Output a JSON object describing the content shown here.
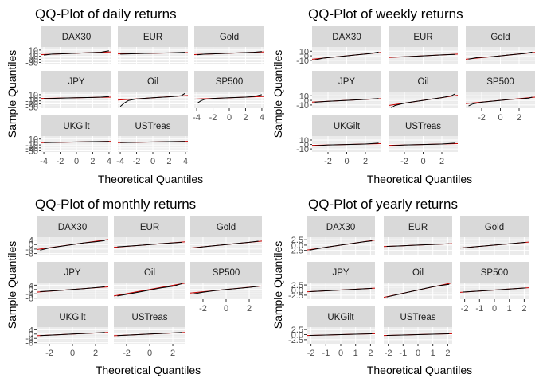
{
  "colors": {
    "strip": "#d9d9d9",
    "panel": "#ebebeb",
    "reference": "#cc0000",
    "sample": "#000000"
  },
  "chart_data": [
    {
      "type": "scatter",
      "title": "QQ-Plot of daily returns",
      "xlabel": "Theoretical Quantiles",
      "ylabel": "Sample Quantiles",
      "facets": [
        "DAX30",
        "EUR",
        "Gold",
        "JPY",
        "Oil",
        "SP500",
        "UKGilt",
        "USTreas"
      ],
      "xlim": [
        -4.3,
        4.3
      ],
      "ylim": [
        -34,
        20
      ],
      "xticks": [
        -4,
        -2,
        0,
        2,
        4
      ],
      "xtick_labels": [
        "-4",
        "-2",
        "0",
        "2",
        "4"
      ],
      "yticks": [
        10,
        0,
        -10,
        -20,
        -30
      ],
      "ytick_labels": [
        "10",
        "0",
        "-10",
        "-20",
        "-30"
      ],
      "series": [
        {
          "facet": "DAX30",
          "x": [
            -4,
            -3,
            -2,
            0,
            2,
            3,
            4
          ],
          "y": [
            -6,
            -3,
            -2,
            0,
            2,
            3,
            8
          ]
        },
        {
          "facet": "EUR",
          "x": [
            -4,
            -3,
            -2,
            0,
            2,
            3,
            4
          ],
          "y": [
            -3,
            -2,
            -1,
            0,
            1,
            2,
            3
          ]
        },
        {
          "facet": "Gold",
          "x": [
            -4,
            -3,
            -2,
            0,
            2,
            3,
            4
          ],
          "y": [
            -5,
            -3,
            -2,
            0,
            2,
            3,
            5
          ]
        },
        {
          "facet": "JPY",
          "x": [
            -4,
            -3,
            -2,
            0,
            2,
            3,
            4
          ],
          "y": [
            -3,
            -2,
            -1,
            0,
            1,
            2,
            4
          ]
        },
        {
          "facet": "Oil",
          "x": [
            -4,
            -3.5,
            -3,
            -2,
            0,
            2,
            3,
            3.5,
            4
          ],
          "y": [
            -28,
            -17,
            -9,
            -4,
            0,
            3,
            5,
            7,
            15
          ]
        },
        {
          "facet": "SP500",
          "x": [
            -4,
            -3.5,
            -3,
            -2,
            0,
            2,
            3,
            4
          ],
          "y": [
            -19,
            -10,
            -5,
            -2,
            0,
            2,
            4,
            10
          ]
        },
        {
          "facet": "UKGilt",
          "x": [
            -4,
            -3,
            -2,
            0,
            2,
            3,
            4
          ],
          "y": [
            -2,
            -1.5,
            -1,
            0,
            1,
            1.5,
            2
          ]
        },
        {
          "facet": "USTreas",
          "x": [
            -4,
            -3,
            -2,
            0,
            2,
            3,
            4
          ],
          "y": [
            -2,
            -1.5,
            -1,
            0,
            1,
            1.5,
            2
          ]
        }
      ]
    },
    {
      "type": "scatter",
      "title": "QQ-Plot of weekly returns",
      "xlabel": "Theoretical Quantiles",
      "ylabel": "Sample Quantiles",
      "facets": [
        "DAX30",
        "EUR",
        "Gold",
        "JPY",
        "Oil",
        "SP500",
        "UKGilt",
        "USTreas"
      ],
      "xlim": [
        -3.7,
        3.7
      ],
      "ylim": [
        -17,
        19
      ],
      "xticks": [
        -2,
        0,
        2
      ],
      "xtick_labels": [
        "-2",
        "0",
        "2"
      ],
      "yticks": [
        10,
        0,
        -10
      ],
      "ytick_labels": [
        "10",
        "0",
        "-10"
      ],
      "series": [
        {
          "facet": "DAX30",
          "x": [
            -3.4,
            -2.5,
            -1,
            0,
            1,
            2.5,
            3.4
          ],
          "y": [
            -9,
            -5,
            -2,
            0,
            2,
            5,
            8
          ]
        },
        {
          "facet": "EUR",
          "x": [
            -3.4,
            -2,
            0,
            2,
            3.4
          ],
          "y": [
            -3,
            -2,
            0,
            2,
            3
          ]
        },
        {
          "facet": "Gold",
          "x": [
            -3.4,
            -2.5,
            -1,
            0,
            1,
            2.5,
            3.4
          ],
          "y": [
            -7,
            -4,
            -2,
            0,
            2,
            5,
            8
          ]
        },
        {
          "facet": "JPY",
          "x": [
            -3.4,
            -2,
            0,
            2,
            3.4
          ],
          "y": [
            -4,
            -2,
            0,
            2,
            4
          ]
        },
        {
          "facet": "Oil",
          "x": [
            -3.4,
            -3,
            -2,
            -1,
            0,
            1,
            2,
            3,
            3.4
          ],
          "y": [
            -16,
            -11,
            -6,
            -3,
            0,
            3,
            6,
            10,
            14
          ]
        },
        {
          "facet": "SP500",
          "x": [
            -3.4,
            -3,
            -2,
            -1,
            0,
            1,
            2,
            3,
            3.4
          ],
          "y": [
            -12,
            -8,
            -4,
            -2,
            0,
            2,
            3,
            5,
            7
          ]
        },
        {
          "facet": "UKGilt",
          "x": [
            -3.4,
            -2,
            0,
            2,
            3.4
          ],
          "y": [
            -3,
            -1,
            0,
            1,
            3
          ]
        },
        {
          "facet": "USTreas",
          "x": [
            -3.4,
            -2,
            0,
            2,
            3.4
          ],
          "y": [
            -3,
            -1,
            0,
            1,
            3
          ]
        }
      ]
    },
    {
      "type": "scatter",
      "title": "QQ-Plot of monthly returns",
      "xlabel": "Theoretical Quantiles",
      "ylabel": "Sample Quantiles",
      "facets": [
        "DAX30",
        "EUR",
        "Gold",
        "JPY",
        "Oil",
        "SP500",
        "UKGilt",
        "USTreas"
      ],
      "xlim": [
        -3.1,
        3.1
      ],
      "ylim": [
        -9,
        6.5
      ],
      "xticks": [
        -2,
        0,
        2
      ],
      "xtick_labels": [
        "-2",
        "0",
        "2"
      ],
      "yticks": [
        4,
        0,
        -4,
        -8
      ],
      "ytick_labels": [
        "4",
        "0",
        "-4",
        "-8"
      ],
      "series": [
        {
          "facet": "DAX30",
          "x": [
            -2.8,
            -2,
            -1,
            0,
            1,
            2,
            2.8
          ],
          "y": [
            -5,
            -3,
            -1.5,
            0,
            1.5,
            2.5,
            3.5
          ]
        },
        {
          "facet": "EUR",
          "x": [
            -2.8,
            -1,
            0,
            1,
            2.8
          ],
          "y": [
            -2,
            -0.8,
            0,
            0.8,
            2
          ]
        },
        {
          "facet": "Gold",
          "x": [
            -2.8,
            -2,
            -1,
            0,
            1,
            2,
            2.8
          ],
          "y": [
            -3,
            -2,
            -1,
            0,
            1,
            2,
            3
          ]
        },
        {
          "facet": "JPY",
          "x": [
            -2.8,
            -1,
            0,
            1,
            2.8
          ],
          "y": [
            -2,
            -0.8,
            0,
            0.8,
            2.5
          ]
        },
        {
          "facet": "Oil",
          "x": [
            -2.8,
            -2,
            -1,
            0,
            1,
            2,
            2.5,
            2.8
          ],
          "y": [
            -6,
            -4.5,
            -2.5,
            -0.5,
            1.5,
            3,
            4.5,
            5.5
          ]
        },
        {
          "facet": "SP500",
          "x": [
            -2.8,
            -2,
            -1,
            0,
            1,
            2,
            2.8
          ],
          "y": [
            -4,
            -2.5,
            -1,
            0,
            1,
            2,
            3
          ]
        },
        {
          "facet": "UKGilt",
          "x": [
            -2.8,
            -1,
            0,
            1,
            2.8
          ],
          "y": [
            -1.5,
            -0.5,
            0,
            0.5,
            1.5
          ]
        },
        {
          "facet": "USTreas",
          "x": [
            -2.8,
            -1,
            0,
            1,
            2.8
          ],
          "y": [
            -1.5,
            -0.5,
            0,
            0.5,
            1.5
          ]
        }
      ]
    },
    {
      "type": "scatter",
      "title": "QQ-Plot of yearly returns",
      "xlabel": "Theoretical Quantiles",
      "ylabel": "Sample Quantiles",
      "facets": [
        "DAX30",
        "EUR",
        "Gold",
        "JPY",
        "Oil",
        "SP500",
        "UKGilt",
        "USTreas"
      ],
      "xlim": [
        -2.3,
        2.3
      ],
      "ylim": [
        -4.5,
        3.7
      ],
      "xticks": [
        -2,
        -1,
        0,
        1,
        2
      ],
      "xtick_labels": [
        "-2",
        "-1",
        "0",
        "1",
        "2"
      ],
      "yticks": [
        2.5,
        0,
        -2.5
      ],
      "ytick_labels": [
        "2.5",
        "0.0",
        "-2.5"
      ],
      "series": [
        {
          "facet": "DAX30",
          "x": [
            -2.1,
            -1.5,
            -1,
            -0.5,
            0,
            0.5,
            1,
            1.5,
            2.1
          ],
          "y": [
            -2.4,
            -1.6,
            -1,
            -0.5,
            0,
            0.5,
            1,
            1.5,
            2
          ]
        },
        {
          "facet": "EUR",
          "x": [
            -2.1,
            -1,
            0,
            1,
            2.1
          ],
          "y": [
            -0.6,
            -0.3,
            0,
            0.3,
            0.6
          ]
        },
        {
          "facet": "Gold",
          "x": [
            -2.1,
            -1,
            0,
            1,
            2.1
          ],
          "y": [
            -1.3,
            -0.6,
            0,
            0.6,
            1.3
          ]
        },
        {
          "facet": "JPY",
          "x": [
            -2.1,
            -1,
            0,
            1,
            2.1
          ],
          "y": [
            -0.8,
            -0.4,
            0,
            0.4,
            0.8
          ]
        },
        {
          "facet": "Oil",
          "x": [
            -2.1,
            -1.5,
            -1,
            -0.5,
            0,
            0.5,
            1,
            1.5,
            2.1
          ],
          "y": [
            -3.4,
            -2.4,
            -1.6,
            -0.8,
            0,
            0.8,
            1.6,
            2.2,
            2.8
          ]
        },
        {
          "facet": "SP500",
          "x": [
            -2.1,
            -1,
            0,
            1,
            2.1
          ],
          "y": [
            -1,
            -0.5,
            0,
            0.5,
            1
          ]
        },
        {
          "facet": "UKGilt",
          "x": [
            -2.1,
            -1,
            0,
            1,
            2.1
          ],
          "y": [
            -0.4,
            -0.2,
            0,
            0.2,
            0.4
          ]
        },
        {
          "facet": "USTreas",
          "x": [
            -2.1,
            -1,
            0,
            1,
            2.1
          ],
          "y": [
            -0.4,
            -0.2,
            0,
            0.2,
            0.4
          ]
        }
      ]
    }
  ]
}
